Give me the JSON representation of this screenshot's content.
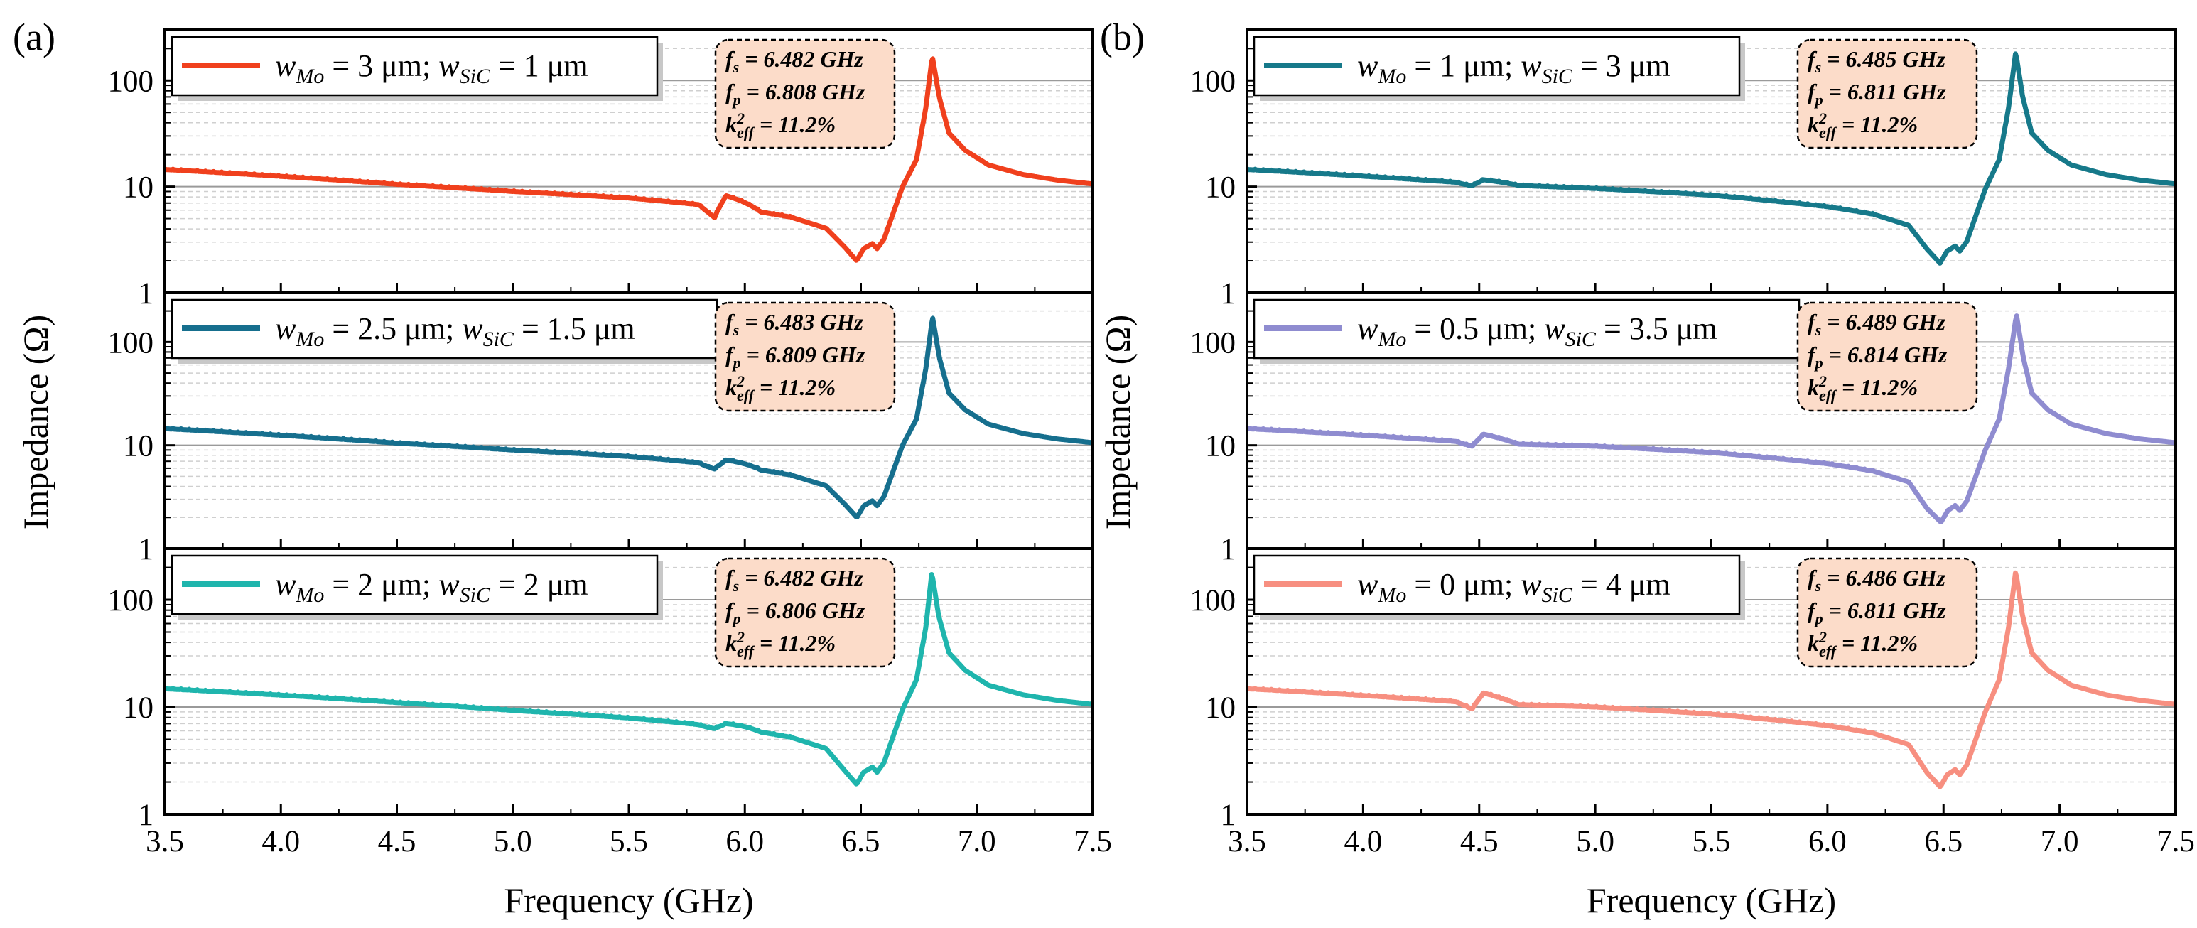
{
  "chart_data": {
    "type": "line",
    "x_axis": {
      "label": "Frequency (GHz)",
      "range": [
        3.5,
        7.5
      ],
      "ticks": [
        3.5,
        4.0,
        4.5,
        5.0,
        5.5,
        6.0,
        6.5,
        7.0,
        7.5
      ],
      "tick_labels": [
        "3.5",
        "4.0",
        "4.5",
        "5.0",
        "5.5",
        "6.0",
        "6.5",
        "7.0",
        "7.5"
      ]
    },
    "y_axis": {
      "label": "Impedance (Ω)",
      "scale": "log",
      "range": [
        1,
        300
      ],
      "ticks": [
        1,
        10,
        100
      ],
      "tick_labels": [
        "1",
        "10",
        "100"
      ]
    },
    "grid": true,
    "figures": [
      {
        "panel": "(a)",
        "subplots": [
          {
            "color": "#F0401D",
            "legend": {
              "w_mo_value": "3 μm",
              "w_sic_value": "1 μm"
            },
            "annotation": {
              "fs": "6.482 GHz",
              "fp": "6.808 GHz",
              "k2eff": "11.2%"
            },
            "curve": {
              "v35": 14.5,
              "v45": 10.5,
              "v50": 9.0,
              "v55": 7.8,
              "a1x": 5.87,
              "a1min": 5.1,
              "a1max": 8.2,
              "vmin": 2.0,
              "fs": 6.482,
              "fp": 6.808,
              "zmax": 170,
              "v75": 10.6
            }
          },
          {
            "color": "#166F8E",
            "legend": {
              "w_mo_value": "2.5 μm",
              "w_sic_value": "1.5 μm"
            },
            "annotation": {
              "fs": "6.483 GHz",
              "fp": "6.809 GHz",
              "k2eff": "11.2%"
            },
            "curve": {
              "v35": 14.5,
              "v45": 10.5,
              "v50": 9.0,
              "v55": 7.8,
              "a1x": 5.87,
              "a1min": 5.9,
              "a1max": 7.2,
              "vmin": 2.0,
              "fs": 6.483,
              "fp": 6.809,
              "zmax": 175,
              "v75": 10.6
            }
          },
          {
            "color": "#1FB5AD",
            "legend": {
              "w_mo_value": "2 μm",
              "w_sic_value": "2 μm"
            },
            "annotation": {
              "fs": "6.482 GHz",
              "fp": "6.806 GHz",
              "k2eff": "11.2%"
            },
            "curve": {
              "v35": 14.8,
              "v45": 11.0,
              "v50": 9.3,
              "v55": 7.9,
              "a1x": 5.87,
              "a1min": 6.3,
              "a1max": 7.0,
              "vmin": 1.9,
              "fs": 6.482,
              "fp": 6.806,
              "zmax": 180,
              "v75": 10.6
            }
          }
        ]
      },
      {
        "panel": "(b)",
        "subplots": [
          {
            "color": "#16798A",
            "legend": {
              "w_mo_value": "1 μm",
              "w_sic_value": "3 μm"
            },
            "annotation": {
              "fs": "6.485 GHz",
              "fp": "6.811 GHz",
              "k2eff": "11.2%"
            },
            "curve": {
              "v35": 14.5,
              "v45": 10.6,
              "v50": 9.6,
              "v55": 8.3,
              "a1x": 4.47,
              "a1min": 10.2,
              "a1max": 11.6,
              "vmin": 1.9,
              "fs": 6.485,
              "fp": 6.811,
              "zmax": 185,
              "v75": 10.6
            }
          },
          {
            "color": "#8F8CD0",
            "legend": {
              "w_mo_value": "0.5 μm",
              "w_sic_value": "3.5 μm"
            },
            "annotation": {
              "fs": "6.489 GHz",
              "fp": "6.814 GHz",
              "k2eff": "11.2%"
            },
            "curve": {
              "v35": 14.5,
              "v45": 10.5,
              "v50": 9.8,
              "v55": 8.5,
              "a1x": 4.47,
              "a1min": 9.8,
              "a1max": 12.8,
              "vmin": 1.8,
              "fs": 6.489,
              "fp": 6.814,
              "zmax": 185,
              "v75": 10.6
            }
          },
          {
            "color": "#F78F80",
            "legend": {
              "w_mo_value": "0 μm",
              "w_sic_value": "4 μm"
            },
            "annotation": {
              "fs": "6.486 GHz",
              "fp": "6.811 GHz",
              "k2eff": "11.2%"
            },
            "curve": {
              "v35": 14.8,
              "v45": 10.8,
              "v50": 10.0,
              "v55": 8.6,
              "a1x": 4.47,
              "a1min": 9.6,
              "a1max": 13.5,
              "vmin": 1.8,
              "fs": 6.486,
              "fp": 6.811,
              "zmax": 185,
              "v75": 10.6
            }
          }
        ]
      }
    ]
  },
  "legend_labels": {
    "w": "w",
    "mo_sub": "Mo",
    "sic_sub": "SiC",
    "equals": "=",
    "separator": ";"
  },
  "annotation_labels": {
    "f": "f",
    "s_sub": "s",
    "p_sub": "p",
    "k": "k",
    "k_sup": "2",
    "eff_sub": "eff",
    "equals": "="
  }
}
